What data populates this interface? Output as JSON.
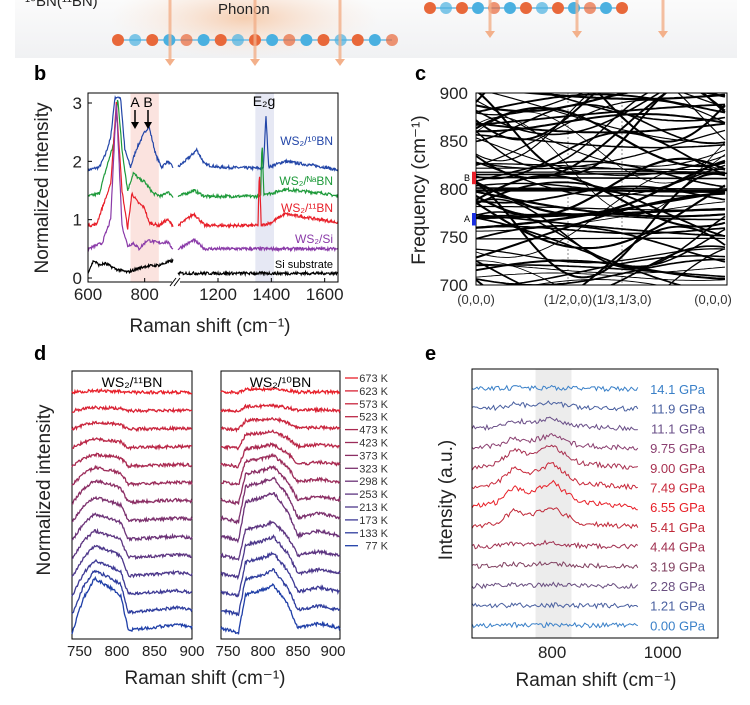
{
  "schematic": {
    "material_label": "¹⁰BN(¹¹BN)",
    "phonon_label": "Phonon",
    "bead_colors": [
      "#e8683a",
      "#4ab0e0"
    ]
  },
  "chart_data": [
    {
      "panel": "b",
      "type": "line",
      "xlabel": "Raman shift (cm⁻¹)",
      "ylabel": "Normalized intensity",
      "xlim": [
        600,
        1650
      ],
      "axis_break": [
        900,
        1050
      ],
      "ylim": [
        -0.15,
        3.1
      ],
      "xticks": [
        600,
        800,
        1200,
        1400,
        1600
      ],
      "yticks": [
        0,
        1,
        2,
        3
      ],
      "shaded_regions": [
        {
          "x": [
            750,
            850
          ],
          "color": "#fbe3df"
        },
        {
          "x": [
            1340,
            1410
          ],
          "color": "#e6e8f4"
        }
      ],
      "annotations": [
        {
          "text": "A",
          "x": 770
        },
        {
          "text": "B",
          "x": 815
        },
        {
          "text": "E₂g",
          "x": 1375
        }
      ],
      "series": [
        {
          "name": "WS₂/¹⁰BN",
          "color": "#2346a8",
          "points": [
            [
              600,
              1.85
            ],
            [
              640,
              1.9
            ],
            [
              660,
              2.1
            ],
            [
              680,
              2.4
            ],
            [
              695,
              3.1
            ],
            [
              715,
              3.1
            ],
            [
              730,
              2.2
            ],
            [
              750,
              1.9
            ],
            [
              770,
              2.2
            ],
            [
              800,
              2.5
            ],
            [
              815,
              2.6
            ],
            [
              840,
              2.1
            ],
            [
              860,
              1.9
            ],
            [
              880,
              2.0
            ],
            [
              900,
              1.9
            ],
            [
              1050,
              1.9
            ],
            [
              1100,
              2.1
            ],
            [
              1120,
              2.2
            ],
            [
              1150,
              1.95
            ],
            [
              1200,
              1.9
            ],
            [
              1370,
              1.88
            ],
            [
              1380,
              2.8
            ],
            [
              1390,
              1.9
            ],
            [
              1450,
              2.0
            ],
            [
              1600,
              1.9
            ],
            [
              1650,
              1.85
            ]
          ]
        },
        {
          "name": "WS₂/ᴺᵃBN",
          "color": "#1e9a3a",
          "points": [
            [
              600,
              1.4
            ],
            [
              640,
              1.45
            ],
            [
              660,
              1.8
            ],
            [
              690,
              2.3
            ],
            [
              705,
              3.1
            ],
            [
              720,
              2.2
            ],
            [
              740,
              1.5
            ],
            [
              760,
              1.8
            ],
            [
              780,
              1.7
            ],
            [
              800,
              1.65
            ],
            [
              830,
              1.45
            ],
            [
              860,
              1.4
            ],
            [
              880,
              1.48
            ],
            [
              900,
              1.4
            ],
            [
              1050,
              1.4
            ],
            [
              1110,
              1.5
            ],
            [
              1150,
              1.4
            ],
            [
              1360,
              1.4
            ],
            [
              1365,
              2.35
            ],
            [
              1372,
              1.45
            ],
            [
              1400,
              1.45
            ],
            [
              1450,
              1.52
            ],
            [
              1600,
              1.45
            ],
            [
              1650,
              1.4
            ]
          ]
        },
        {
          "name": "WS₂/¹¹BN",
          "color": "#e8202a",
          "points": [
            [
              600,
              0.9
            ],
            [
              630,
              0.92
            ],
            [
              650,
              1.2
            ],
            [
              680,
              1.6
            ],
            [
              700,
              3.0
            ],
            [
              720,
              1.5
            ],
            [
              740,
              0.85
            ],
            [
              755,
              1.45
            ],
            [
              775,
              1.3
            ],
            [
              800,
              1.2
            ],
            [
              815,
              0.95
            ],
            [
              850,
              0.9
            ],
            [
              880,
              1.0
            ],
            [
              900,
              0.9
            ],
            [
              1050,
              0.9
            ],
            [
              1110,
              1.1
            ],
            [
              1150,
              0.9
            ],
            [
              1350,
              0.9
            ],
            [
              1355,
              1.85
            ],
            [
              1362,
              0.9
            ],
            [
              1400,
              0.95
            ],
            [
              1450,
              1.1
            ],
            [
              1650,
              0.95
            ]
          ]
        },
        {
          "name": "WS₂/Si",
          "color": "#8a3aa8",
          "points": [
            [
              600,
              0.5
            ],
            [
              650,
              0.6
            ],
            [
              680,
              1.0
            ],
            [
              700,
              3.0
            ],
            [
              720,
              0.9
            ],
            [
              740,
              0.55
            ],
            [
              760,
              0.6
            ],
            [
              780,
              0.5
            ],
            [
              810,
              0.65
            ],
            [
              850,
              0.6
            ],
            [
              880,
              0.62
            ],
            [
              900,
              0.5
            ],
            [
              1050,
              0.5
            ],
            [
              1110,
              0.65
            ],
            [
              1150,
              0.5
            ],
            [
              1650,
              0.5
            ]
          ]
        },
        {
          "name": "Si substrate",
          "color": "#000000",
          "points": [
            [
              600,
              0.1
            ],
            [
              620,
              0.3
            ],
            [
              640,
              0.22
            ],
            [
              660,
              0.25
            ],
            [
              700,
              0.15
            ],
            [
              740,
              0.1
            ],
            [
              800,
              0.2
            ],
            [
              850,
              0.22
            ],
            [
              900,
              0.3
            ],
            [
              1050,
              0.08
            ],
            [
              1650,
              0.08
            ]
          ]
        }
      ]
    },
    {
      "panel": "c",
      "type": "line",
      "ylabel": "Frequency (cm⁻¹)",
      "ylim": [
        700,
        900
      ],
      "yticks": [
        700,
        750,
        800,
        850,
        900
      ],
      "k_points": [
        "(0,0,0)",
        "(1/2,0,0)",
        "(1/3,1/3,0)",
        "(0,0,0)"
      ],
      "markers": [
        {
          "label": "B",
          "range": [
            805,
            818
          ],
          "color": "#e8202a"
        },
        {
          "label": "A",
          "range": [
            762,
            775
          ],
          "color": "#1a2fe0"
        }
      ]
    },
    {
      "panel": "d",
      "type": "line",
      "xlabel": "Raman shift (cm⁻¹)",
      "ylabel": "Normalized intensity",
      "color_low_T": "#1f3fa8",
      "color_high_T": "#e8202a",
      "legend": [
        "673 K",
        "623 K",
        "573 K",
        "523 K",
        "473 K",
        "423 K",
        "373 K",
        "323 K",
        "298 K",
        "253 K",
        "213 K",
        "173 K",
        "133 K",
        "77 K"
      ],
      "legend_position": "right",
      "subplots": [
        {
          "title": "WS₂/¹¹BN",
          "xlim": [
            740,
            900
          ],
          "xticks": [
            750,
            800,
            850,
            900
          ],
          "profile": [
            [
              740,
              0
            ],
            [
              755,
              0.6
            ],
            [
              770,
              0.95
            ],
            [
              790,
              0.8
            ],
            [
              805,
              0.65
            ],
            [
              815,
              0.05
            ],
            [
              850,
              0.1
            ],
            [
              880,
              0.15
            ],
            [
              900,
              0.1
            ]
          ],
          "peak_by_temperature": {
            "77 K": 3.1,
            "133 K": 2.5,
            "173 K": 2.0,
            "213 K": 1.8,
            "253 K": 1.6,
            "298 K": 1.5,
            "323 K": 1.4,
            "373 K": 1.3,
            "423 K": 1.0,
            "473 K": 0.7,
            "523 K": 0.5,
            "573 K": 0.4,
            "623 K": 0.2,
            "673 K": 0.1
          }
        },
        {
          "title": "WS₂/¹⁰BN",
          "xlim": [
            740,
            910
          ],
          "xticks": [
            750,
            800,
            850,
            900
          ],
          "profile": [
            [
              740,
              0.1
            ],
            [
              765,
              0
            ],
            [
              775,
              0.8
            ],
            [
              800,
              0.9
            ],
            [
              815,
              1
            ],
            [
              835,
              0.6
            ],
            [
              850,
              0.1
            ],
            [
              880,
              0.2
            ],
            [
              910,
              0.1
            ]
          ],
          "peak_by_temperature": {
            "77 K": 2.6,
            "133 K": 2.4,
            "173 K": 2.3,
            "213 K": 2.2,
            "253 K": 2.0,
            "298 K": 2.6,
            "323 K": 2.4,
            "373 K": 2.0,
            "423 K": 1.6,
            "473 K": 1.2,
            "523 K": 0.9,
            "573 K": 0.6,
            "623 K": 0.3,
            "673 K": 0.2
          }
        }
      ]
    },
    {
      "panel": "e",
      "type": "line",
      "xlabel": "Raman shift (cm⁻¹)",
      "ylabel": "Intensity (a.u.)",
      "xlim": [
        655,
        1100
      ],
      "xticks": [
        800,
        1000
      ],
      "shaded_regions": [
        {
          "x": [
            770,
            835
          ],
          "color": "#ececec"
        }
      ],
      "profile": [
        [
          655,
          0
        ],
        [
          700,
          0.2
        ],
        [
          730,
          0.8
        ],
        [
          760,
          0.6
        ],
        [
          800,
          1.0
        ],
        [
          830,
          0.5
        ],
        [
          850,
          0.2
        ],
        [
          955,
          0
        ]
      ],
      "series": [
        {
          "name": "14.1 GPa",
          "color": "#3a80c8",
          "peak": 0.1
        },
        {
          "name": "11.9 GPa",
          "color": "#4a60a0",
          "peak": 0.4
        },
        {
          "name": "11.1 GPa",
          "color": "#6a4f88",
          "peak": 0.7
        },
        {
          "name": "9.75 GPa",
          "color": "#8a3f70",
          "peak": 0.9
        },
        {
          "name": "9.00 GPa",
          "color": "#a83050",
          "peak": 1.6
        },
        {
          "name": "7.49 GPa",
          "color": "#c8283a",
          "peak": 1.7
        },
        {
          "name": "6.55 GPa",
          "color": "#e82028",
          "peak": 1.8
        },
        {
          "name": "5.41 GPa",
          "color": "#c02838",
          "peak": 1.4
        },
        {
          "name": "4.44 GPa",
          "color": "#a03050",
          "peak": 0.3
        },
        {
          "name": "3.19 GPa",
          "color": "#804060",
          "peak": 0.2
        },
        {
          "name": "2.28 GPa",
          "color": "#6a4f80",
          "peak": 0.1
        },
        {
          "name": "1.21 GPa",
          "color": "#4a60a0",
          "peak": 0.05
        },
        {
          "name": "0.00 GPa",
          "color": "#3a80c8",
          "peak": 0.05
        }
      ]
    }
  ],
  "panel_letters": [
    "b",
    "c",
    "d",
    "e"
  ]
}
